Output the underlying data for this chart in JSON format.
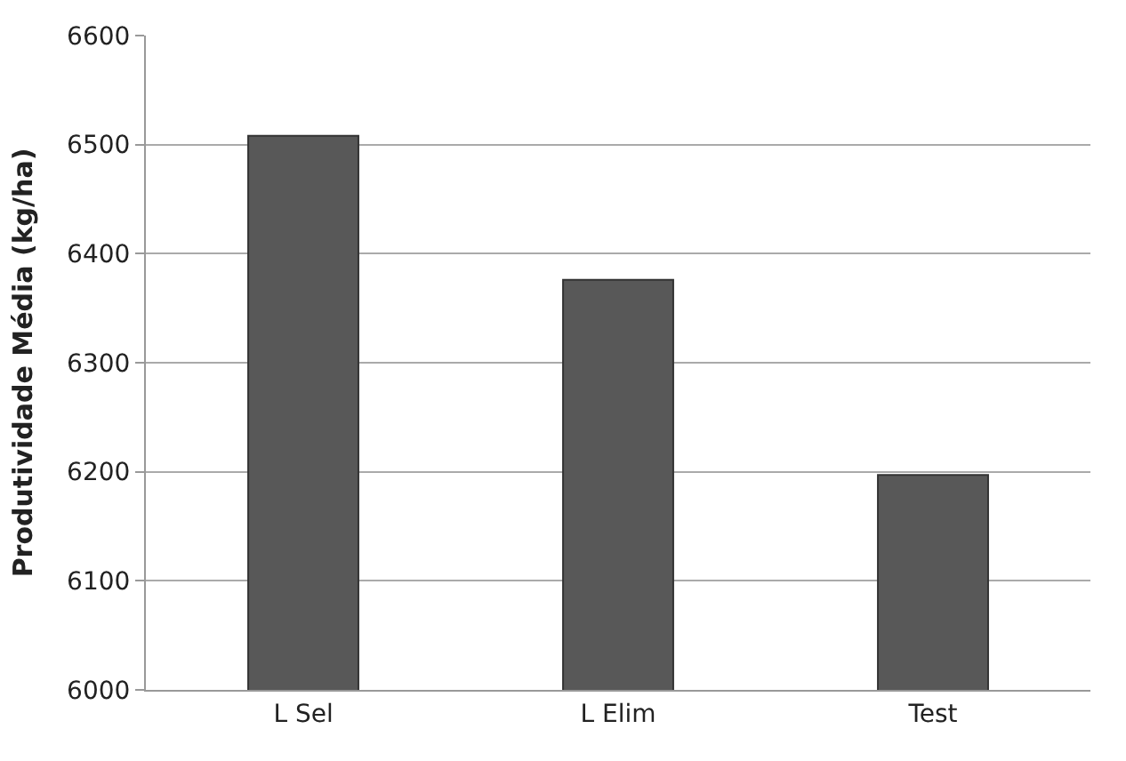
{
  "chart_data": {
    "type": "bar",
    "ylabel": "Produtividade Média (kg/ha)",
    "categories": [
      "L Sel",
      "L Elim",
      "Test"
    ],
    "values": [
      6508,
      6376,
      6197
    ],
    "color": "#585858",
    "ylim": [
      6000,
      6600
    ],
    "yticks": [
      6000,
      6100,
      6200,
      6300,
      6400,
      6500,
      6600
    ],
    "grid": "y"
  }
}
